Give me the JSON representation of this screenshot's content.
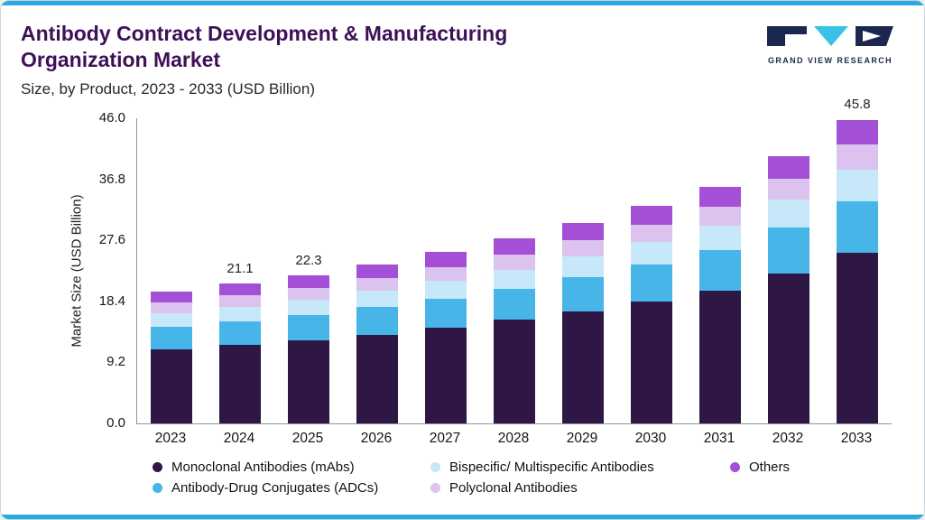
{
  "logo": {
    "text": "GRAND VIEW RESEARCH"
  },
  "colors": {
    "accent_bar": "#2BA9E0",
    "title_text": "#3D1058",
    "logo_navy": "#1c2750",
    "logo_teal": "#39c1e6"
  },
  "chart_data": {
    "type": "bar",
    "stacked": true,
    "title": "Antibody Contract Development & Manufacturing Organization Market",
    "subtitle": "Size, by Product, 2023 - 2033 (USD Billion)",
    "xlabel": "",
    "ylabel": "Market Size (USD Billion)",
    "ylim": [
      0,
      46
    ],
    "yticks": [
      "0.0",
      "9.2",
      "18.4",
      "27.6",
      "36.8",
      "46.0"
    ],
    "grid": false,
    "legend_position": "bottom",
    "categories": [
      "2023",
      "2024",
      "2025",
      "2026",
      "2027",
      "2028",
      "2029",
      "2030",
      "2031",
      "2032",
      "2033"
    ],
    "series": [
      {
        "name": "Monoclonal Antibodies (mAbs)",
        "color": "#2E1745",
        "values": [
          11.1,
          11.8,
          12.5,
          13.4,
          14.4,
          15.6,
          16.9,
          18.4,
          20.0,
          22.6,
          25.7
        ]
      },
      {
        "name": "Antibody-Drug Conjugates (ADCs)",
        "color": "#47B5E8",
        "values": [
          3.4,
          3.6,
          3.8,
          4.1,
          4.4,
          4.7,
          5.1,
          5.6,
          6.1,
          6.9,
          7.8
        ]
      },
      {
        "name": "Bispecific/ Multispecific Antibodies",
        "color": "#C6E8F8",
        "values": [
          2.1,
          2.2,
          2.3,
          2.5,
          2.7,
          2.9,
          3.2,
          3.4,
          3.7,
          4.2,
          4.8
        ]
      },
      {
        "name": "Polyclonal Antibodies",
        "color": "#DCC2EE",
        "values": [
          1.6,
          1.7,
          1.8,
          1.9,
          2.1,
          2.3,
          2.4,
          2.6,
          2.9,
          3.2,
          3.7
        ]
      },
      {
        "name": "Others",
        "color": "#A34FD6",
        "values": [
          1.7,
          1.8,
          1.9,
          2.0,
          2.2,
          2.4,
          2.6,
          2.8,
          3.0,
          3.4,
          3.8
        ]
      }
    ],
    "totals": [
      19.9,
      21.1,
      22.3,
      23.9,
      25.8,
      27.9,
      30.2,
      32.8,
      35.7,
      40.3,
      45.8
    ],
    "bar_labels": {
      "2024": "21.1",
      "2025": "22.3",
      "2033": "45.8"
    },
    "legend_rows": [
      [
        0,
        2,
        4
      ],
      [
        1,
        3
      ]
    ]
  }
}
